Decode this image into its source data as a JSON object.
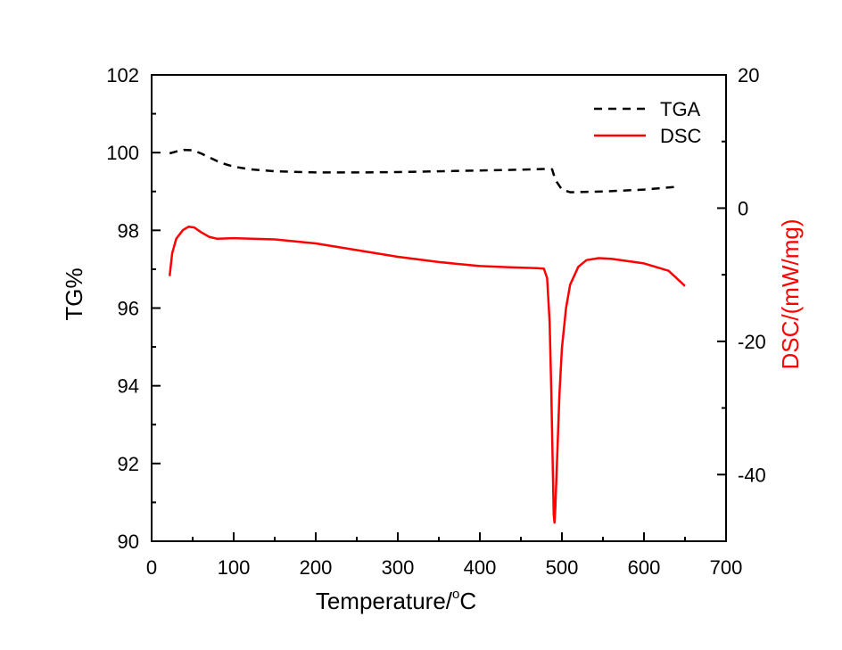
{
  "chart_data": {
    "type": "line",
    "x_axis": {
      "label_main": "Temperature/",
      "label_sup": "o",
      "label_unit": "C",
      "range": [
        0,
        700
      ],
      "ticks": [
        0,
        100,
        200,
        300,
        400,
        500,
        600,
        700
      ]
    },
    "y_axis_left": {
      "label": "TG%",
      "range": [
        90,
        102
      ],
      "ticks": [
        90,
        92,
        94,
        96,
        98,
        100,
        102
      ]
    },
    "y_axis_right": {
      "label": "DSC/(mW/mg)",
      "range": [
        -50,
        20
      ],
      "ticks": [
        -40,
        -20,
        0,
        20
      ],
      "color": "#ff0000"
    },
    "legend": {
      "placement": "top-right"
    },
    "grid": false,
    "series": [
      {
        "name": "TGA",
        "axis": "left",
        "style": "dashed",
        "color": "#000000",
        "points": [
          [
            22,
            99.98
          ],
          [
            30,
            100.03
          ],
          [
            40,
            100.07
          ],
          [
            50,
            100.06
          ],
          [
            60,
            99.98
          ],
          [
            70,
            99.88
          ],
          [
            80,
            99.78
          ],
          [
            90,
            99.7
          ],
          [
            100,
            99.64
          ],
          [
            120,
            99.57
          ],
          [
            150,
            99.52
          ],
          [
            200,
            99.49
          ],
          [
            250,
            99.49
          ],
          [
            300,
            99.5
          ],
          [
            350,
            99.52
          ],
          [
            400,
            99.54
          ],
          [
            450,
            99.56
          ],
          [
            480,
            99.58
          ],
          [
            488,
            99.57
          ],
          [
            492,
            99.3
          ],
          [
            500,
            99.05
          ],
          [
            510,
            98.98
          ],
          [
            550,
            99.0
          ],
          [
            600,
            99.05
          ],
          [
            640,
            99.12
          ]
        ]
      },
      {
        "name": "DSC",
        "axis": "right",
        "style": "solid",
        "color": "#ff0000",
        "points": [
          [
            22,
            -10.2
          ],
          [
            25,
            -6.8
          ],
          [
            30,
            -4.6
          ],
          [
            38,
            -3.3
          ],
          [
            45,
            -2.8
          ],
          [
            52,
            -2.9
          ],
          [
            60,
            -3.6
          ],
          [
            70,
            -4.3
          ],
          [
            80,
            -4.6
          ],
          [
            100,
            -4.5
          ],
          [
            150,
            -4.7
          ],
          [
            200,
            -5.3
          ],
          [
            250,
            -6.3
          ],
          [
            300,
            -7.3
          ],
          [
            350,
            -8.1
          ],
          [
            400,
            -8.7
          ],
          [
            440,
            -8.9
          ],
          [
            470,
            -9.0
          ],
          [
            478,
            -9.1
          ],
          [
            482,
            -10.5
          ],
          [
            485,
            -17.0
          ],
          [
            487,
            -27.0
          ],
          [
            489,
            -40.0
          ],
          [
            490,
            -46.0
          ],
          [
            491,
            -47.2
          ],
          [
            492,
            -45.0
          ],
          [
            494,
            -38.0
          ],
          [
            497,
            -28.0
          ],
          [
            500,
            -21.0
          ],
          [
            505,
            -15.0
          ],
          [
            510,
            -11.5
          ],
          [
            520,
            -8.8
          ],
          [
            530,
            -7.8
          ],
          [
            545,
            -7.5
          ],
          [
            560,
            -7.6
          ],
          [
            600,
            -8.3
          ],
          [
            630,
            -9.4
          ],
          [
            650,
            -11.7
          ]
        ]
      }
    ]
  }
}
